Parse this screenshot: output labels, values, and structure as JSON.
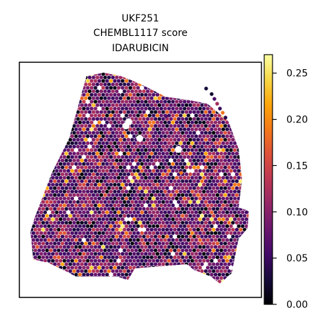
{
  "chart_data": {
    "type": "scatter",
    "subtype": "spatial-hexbin",
    "title_lines": [
      "UKF251",
      "CHEMBL1117 score",
      "IDARUBICIN"
    ],
    "xlabel": "",
    "ylabel": "",
    "grid": false,
    "legend": "none",
    "colormap": "inferno",
    "colorbar": {
      "placement": "right",
      "range": [
        0,
        0.27
      ],
      "ticks": [
        0.0,
        0.05,
        0.1,
        0.15,
        0.2,
        0.25
      ],
      "tick_labels": [
        "0.00",
        "0.05",
        "0.10",
        "0.15",
        "0.20",
        "0.25"
      ]
    },
    "value_distribution": {
      "min": 0.0,
      "max": 0.27,
      "typical": 0.08
    }
  }
}
